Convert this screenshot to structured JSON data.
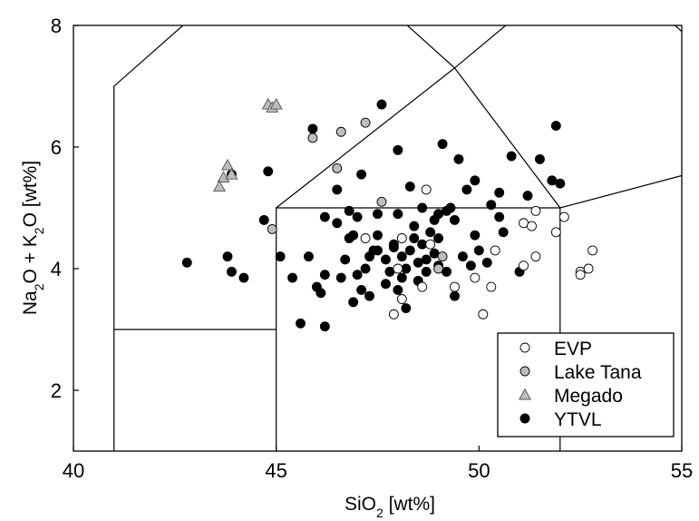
{
  "chart_data": {
    "type": "scatter",
    "xlabel": {
      "main": "SiO",
      "sub": "2",
      "rest": " [wt%]"
    },
    "ylabel": {
      "a": "Na",
      "a_sub": "2",
      "b": "O + K",
      "b_sub": "2",
      "c": "O [wt%]"
    },
    "xlim": [
      40,
      55
    ],
    "ylim": [
      1,
      8
    ],
    "xticks": [
      40,
      45,
      50,
      55
    ],
    "yticks": [
      2,
      4,
      6,
      8
    ],
    "grid": false,
    "legend_position": "bottom-right",
    "classification_lines": [
      [
        [
          41,
          1
        ],
        [
          41,
          7
        ],
        [
          42.7,
          8
        ]
      ],
      [
        [
          41,
          3
        ],
        [
          45,
          3
        ]
      ],
      [
        [
          45,
          1
        ],
        [
          45,
          5
        ],
        [
          52,
          5
        ],
        [
          52,
          1
        ]
      ],
      [
        [
          45,
          5
        ],
        [
          49.4,
          7.3
        ],
        [
          53,
          9.3
        ]
      ],
      [
        [
          47.4,
          8.5
        ],
        [
          49.4,
          7.3
        ],
        [
          52,
          5
        ]
      ],
      [
        [
          52,
          5
        ],
        [
          55,
          5.53
        ]
      ],
      [
        [
          54.5,
          8.2
        ],
        [
          55,
          7.9
        ]
      ]
    ],
    "series": [
      {
        "name": "EVP",
        "marker": "circle",
        "color": "#ffffff",
        "points": [
          [
            48.7,
            5.3
          ],
          [
            47.2,
            4.5
          ],
          [
            48.1,
            4.5
          ],
          [
            48.8,
            4.4
          ],
          [
            48.0,
            4.0
          ],
          [
            48.6,
            3.7
          ],
          [
            48.1,
            3.5
          ],
          [
            47.9,
            3.25
          ],
          [
            49.4,
            3.7
          ],
          [
            49.9,
            3.85
          ],
          [
            50.3,
            3.7
          ],
          [
            50.1,
            3.25
          ],
          [
            50.4,
            4.3
          ],
          [
            51.1,
            4.75
          ],
          [
            51.3,
            4.7
          ],
          [
            51.4,
            4.95
          ],
          [
            52.1,
            4.85
          ],
          [
            51.9,
            4.6
          ],
          [
            51.4,
            4.2
          ],
          [
            51.1,
            4.05
          ],
          [
            52.5,
            3.95
          ],
          [
            52.7,
            4.0
          ],
          [
            52.8,
            4.3
          ],
          [
            52.5,
            3.9
          ]
        ]
      },
      {
        "name": "Lake Tana",
        "marker": "circle",
        "color": "#bdbdbd",
        "points": [
          [
            45.9,
            6.15
          ],
          [
            46.6,
            6.25
          ],
          [
            47.2,
            6.4
          ],
          [
            46.5,
            5.65
          ],
          [
            47.6,
            5.1
          ],
          [
            44.9,
            4.65
          ],
          [
            49.0,
            4.0
          ],
          [
            49.1,
            4.2
          ]
        ]
      },
      {
        "name": "Megado",
        "marker": "triangle",
        "color": "#bdbdbd",
        "points": [
          [
            44.8,
            6.7
          ],
          [
            44.9,
            6.65
          ],
          [
            45.0,
            6.7
          ],
          [
            43.8,
            5.7
          ],
          [
            43.7,
            5.5
          ],
          [
            43.6,
            5.35
          ],
          [
            43.9,
            5.55
          ]
        ]
      },
      {
        "name": "YTVL",
        "marker": "circle",
        "color": "#000000",
        "points": [
          [
            42.8,
            4.1
          ],
          [
            43.8,
            4.2
          ],
          [
            43.9,
            3.95
          ],
          [
            44.2,
            3.85
          ],
          [
            43.9,
            5.55
          ],
          [
            44.7,
            4.8
          ],
          [
            44.8,
            5.6
          ],
          [
            45.1,
            4.2
          ],
          [
            45.9,
            6.3
          ],
          [
            47.6,
            6.7
          ],
          [
            48.0,
            5.95
          ],
          [
            48.3,
            5.35
          ],
          [
            47.1,
            5.55
          ],
          [
            46.5,
            5.3
          ],
          [
            45.4,
            3.85
          ],
          [
            45.6,
            3.1
          ],
          [
            45.8,
            4.2
          ],
          [
            46.0,
            3.7
          ],
          [
            46.1,
            3.6
          ],
          [
            46.2,
            3.9
          ],
          [
            46.2,
            3.05
          ],
          [
            46.2,
            4.85
          ],
          [
            46.5,
            4.75
          ],
          [
            46.6,
            3.85
          ],
          [
            46.8,
            4.5
          ],
          [
            46.8,
            4.95
          ],
          [
            47.0,
            4.85
          ],
          [
            46.9,
            3.45
          ],
          [
            47.1,
            3.65
          ],
          [
            47.2,
            4.0
          ],
          [
            47.3,
            4.2
          ],
          [
            47.3,
            3.55
          ],
          [
            47.4,
            4.3
          ],
          [
            47.5,
            4.3
          ],
          [
            47.5,
            4.55
          ],
          [
            47.7,
            4.15
          ],
          [
            47.7,
            3.75
          ],
          [
            47.8,
            3.95
          ],
          [
            47.9,
            4.35
          ],
          [
            48.0,
            4.9
          ],
          [
            48.1,
            4.2
          ],
          [
            48.1,
            3.85
          ],
          [
            48.2,
            3.35
          ],
          [
            48.2,
            4.0
          ],
          [
            48.3,
            4.3
          ],
          [
            48.4,
            4.7
          ],
          [
            48.5,
            4.1
          ],
          [
            48.5,
            3.8
          ],
          [
            48.6,
            4.4
          ],
          [
            48.7,
            3.95
          ],
          [
            48.8,
            4.6
          ],
          [
            48.9,
            4.25
          ],
          [
            49.0,
            4.9
          ],
          [
            49.0,
            4.5
          ],
          [
            49.1,
            6.05
          ],
          [
            49.2,
            3.95
          ],
          [
            49.3,
            5.0
          ],
          [
            49.4,
            3.55
          ],
          [
            49.5,
            5.8
          ],
          [
            49.6,
            4.2
          ],
          [
            49.7,
            5.3
          ],
          [
            49.9,
            5.45
          ],
          [
            49.9,
            4.55
          ],
          [
            50.0,
            4.3
          ],
          [
            50.2,
            4.1
          ],
          [
            50.3,
            5.05
          ],
          [
            50.5,
            5.25
          ],
          [
            50.6,
            4.6
          ],
          [
            50.8,
            5.85
          ],
          [
            51.0,
            3.95
          ],
          [
            51.2,
            5.2
          ],
          [
            51.5,
            5.8
          ],
          [
            51.8,
            5.45
          ],
          [
            51.9,
            6.35
          ],
          [
            52.0,
            5.4
          ],
          [
            48.6,
            5.0
          ],
          [
            48.9,
            4.8
          ],
          [
            49.2,
            4.95
          ],
          [
            47.9,
            4.4
          ],
          [
            48.4,
            4.5
          ],
          [
            49.0,
            4.05
          ],
          [
            47.5,
            4.9
          ],
          [
            46.9,
            4.55
          ],
          [
            48.7,
            4.15
          ],
          [
            49.4,
            4.8
          ],
          [
            50.5,
            4.85
          ],
          [
            49.8,
            4.05
          ],
          [
            47.0,
            3.9
          ],
          [
            48.0,
            3.65
          ],
          [
            46.7,
            4.15
          ]
        ]
      }
    ]
  }
}
